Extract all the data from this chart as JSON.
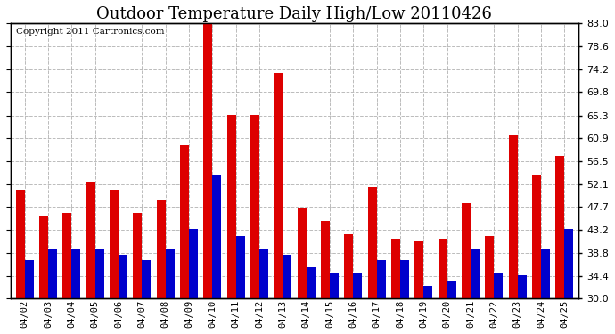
{
  "title": "Outdoor Temperature Daily High/Low 20110426",
  "copyright": "Copyright 2011 Cartronics.com",
  "dates": [
    "04/02",
    "04/03",
    "04/04",
    "04/05",
    "04/06",
    "04/07",
    "04/08",
    "04/09",
    "04/10",
    "04/11",
    "04/12",
    "04/13",
    "04/14",
    "04/15",
    "04/16",
    "04/17",
    "04/18",
    "04/19",
    "04/20",
    "04/21",
    "04/22",
    "04/23",
    "04/24",
    "04/25"
  ],
  "highs": [
    51.0,
    46.0,
    46.5,
    52.5,
    51.0,
    46.5,
    49.0,
    59.5,
    83.0,
    65.5,
    65.5,
    73.5,
    47.5,
    45.0,
    42.5,
    51.5,
    41.5,
    41.0,
    41.5,
    48.5,
    42.0,
    61.5,
    54.0,
    57.5
  ],
  "lows": [
    37.5,
    39.5,
    39.5,
    39.5,
    38.5,
    37.5,
    39.5,
    43.5,
    54.0,
    42.0,
    39.5,
    38.5,
    36.0,
    35.0,
    35.0,
    37.5,
    37.5,
    32.5,
    33.5,
    39.5,
    35.0,
    34.5,
    39.5,
    43.5
  ],
  "high_color": "#dd0000",
  "low_color": "#0000cc",
  "ylim_min": 30.0,
  "ylim_max": 83.0,
  "yticks": [
    30.0,
    34.4,
    38.8,
    43.2,
    47.7,
    52.1,
    56.5,
    60.9,
    65.3,
    69.8,
    74.2,
    78.6,
    83.0
  ],
  "background_color": "#ffffff",
  "grid_color": "#bbbbbb",
  "title_fontsize": 13,
  "copyright_fontsize": 7.5
}
